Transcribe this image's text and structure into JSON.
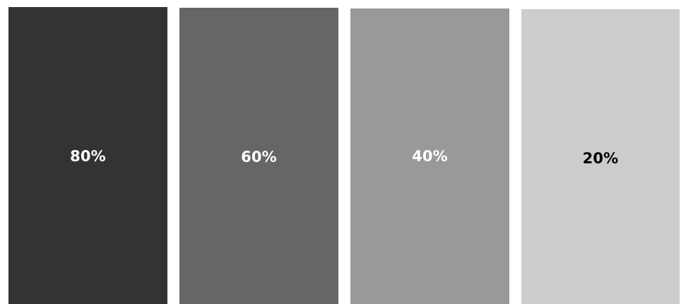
{
  "swatches": [
    {
      "label": "80%",
      "fill_color": "#333333",
      "text_color": "#ffffff"
    },
    {
      "label": "60%",
      "fill_color": "#666666",
      "text_color": "#ffffff"
    },
    {
      "label": "40%",
      "fill_color": "#999999",
      "text_color": "#ffffff"
    },
    {
      "label": "20%",
      "fill_color": "#cccccc",
      "text_color": "#000000"
    }
  ]
}
